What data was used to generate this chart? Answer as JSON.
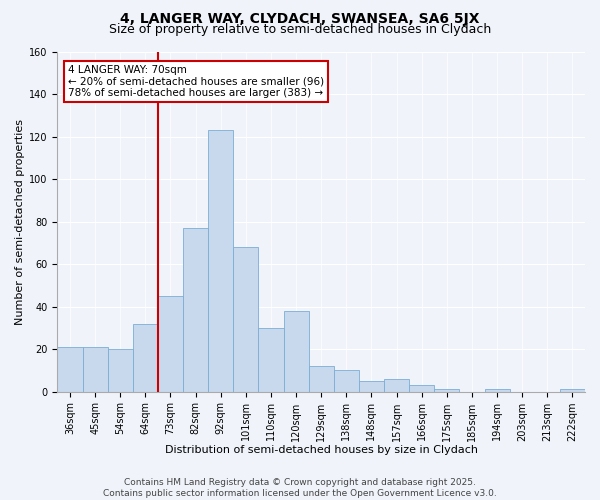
{
  "title": "4, LANGER WAY, CLYDACH, SWANSEA, SA6 5JX",
  "subtitle": "Size of property relative to semi-detached houses in Clydach",
  "xlabel": "Distribution of semi-detached houses by size in Clydach",
  "ylabel": "Number of semi-detached properties",
  "categories": [
    "36sqm",
    "45sqm",
    "54sqm",
    "64sqm",
    "73sqm",
    "82sqm",
    "92sqm",
    "101sqm",
    "110sqm",
    "120sqm",
    "129sqm",
    "138sqm",
    "148sqm",
    "157sqm",
    "166sqm",
    "175sqm",
    "185sqm",
    "194sqm",
    "203sqm",
    "213sqm",
    "222sqm"
  ],
  "values": [
    21,
    21,
    20,
    32,
    45,
    77,
    123,
    68,
    30,
    38,
    12,
    10,
    5,
    6,
    3,
    1,
    0,
    1,
    0,
    0,
    1
  ],
  "bar_color": "#c8d9ee",
  "bar_edge_color": "#7aadd4",
  "vline_color": "#cc0000",
  "annotation_text": "4 LANGER WAY: 70sqm\n← 20% of semi-detached houses are smaller (96)\n78% of semi-detached houses are larger (383) →",
  "annotation_box_color": "#ffffff",
  "annotation_box_edge_color": "#cc0000",
  "ylim": [
    0,
    160
  ],
  "yticks": [
    0,
    20,
    40,
    60,
    80,
    100,
    120,
    140,
    160
  ],
  "footer_line1": "Contains HM Land Registry data © Crown copyright and database right 2025.",
  "footer_line2": "Contains public sector information licensed under the Open Government Licence v3.0.",
  "bg_color": "#f0f4fa",
  "plot_bg_color": "#f0f4fa",
  "title_fontsize": 10,
  "subtitle_fontsize": 9,
  "axis_label_fontsize": 8,
  "tick_fontsize": 7,
  "footer_fontsize": 6.5,
  "vline_index": 4
}
